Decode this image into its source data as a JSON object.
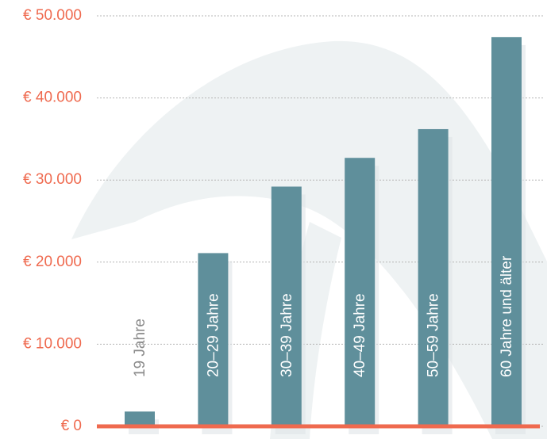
{
  "chart_data": {
    "type": "bar",
    "categories": [
      "19 Jahre",
      "20–29 Jahre",
      "30–39 Jahre",
      "40–49 Jahre",
      "50–59 Jahre",
      "60 Jahre und älter"
    ],
    "values": [
      1800,
      21100,
      29200,
      32700,
      36200,
      47400
    ],
    "color": "#5f8f9b",
    "ylim": [
      0,
      50000
    ],
    "yticks": [
      {
        "value": 0,
        "label": "€ 0"
      },
      {
        "value": 10000,
        "label": "€ 10.000"
      },
      {
        "value": 20000,
        "label": "€ 20.000"
      },
      {
        "value": 30000,
        "label": "€ 30.000"
      },
      {
        "value": 40000,
        "label": "€ 40.000"
      },
      {
        "value": 50000,
        "label": "€ 50.000"
      }
    ],
    "grid": true
  }
}
